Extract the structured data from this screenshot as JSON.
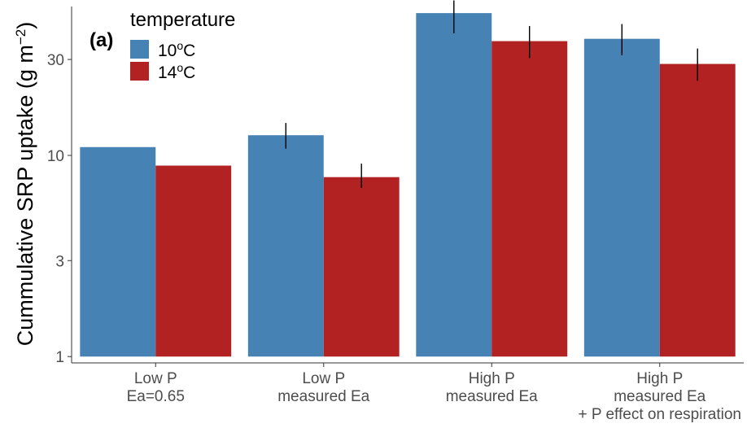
{
  "chart_data": {
    "type": "bar",
    "panel_label": "(a)",
    "ylabel": {
      "main": "Cummulative SRP uptake (g m",
      "sup": "−2",
      "close": ")"
    },
    "yscale": "log",
    "ylim": [
      0.93,
      55
    ],
    "yticks": [
      {
        "value": 1,
        "label": "1"
      },
      {
        "value": 3,
        "label": "3"
      },
      {
        "value": 10,
        "label": "10"
      },
      {
        "value": 30,
        "label": "30"
      }
    ],
    "categories": [
      [
        "Low P",
        "Ea=0.65"
      ],
      [
        "Low P",
        "measured Ea"
      ],
      [
        "High P",
        "measured Ea"
      ],
      [
        "High P",
        "measured Ea",
        "+ P effect on respiration"
      ]
    ],
    "legend": {
      "title": "temperature",
      "position": "top-left"
    },
    "series": [
      {
        "name": {
          "base": "10",
          "sup": "o",
          "unit": "C"
        },
        "color": "#4682B4",
        "values": [
          11.0,
          12.6,
          51.0,
          38.0
        ],
        "err_low": [
          null,
          10.8,
          40.5,
          31.5
        ],
        "err_high": [
          null,
          14.5,
          59.0,
          45.0
        ]
      },
      {
        "name": {
          "base": "14",
          "sup": "o",
          "unit": "C"
        },
        "color": "#B22222",
        "values": [
          8.9,
          7.8,
          37.0,
          28.5
        ],
        "err_low": [
          null,
          6.9,
          30.5,
          23.5
        ],
        "err_high": [
          null,
          9.1,
          44.0,
          34.0
        ]
      }
    ]
  }
}
